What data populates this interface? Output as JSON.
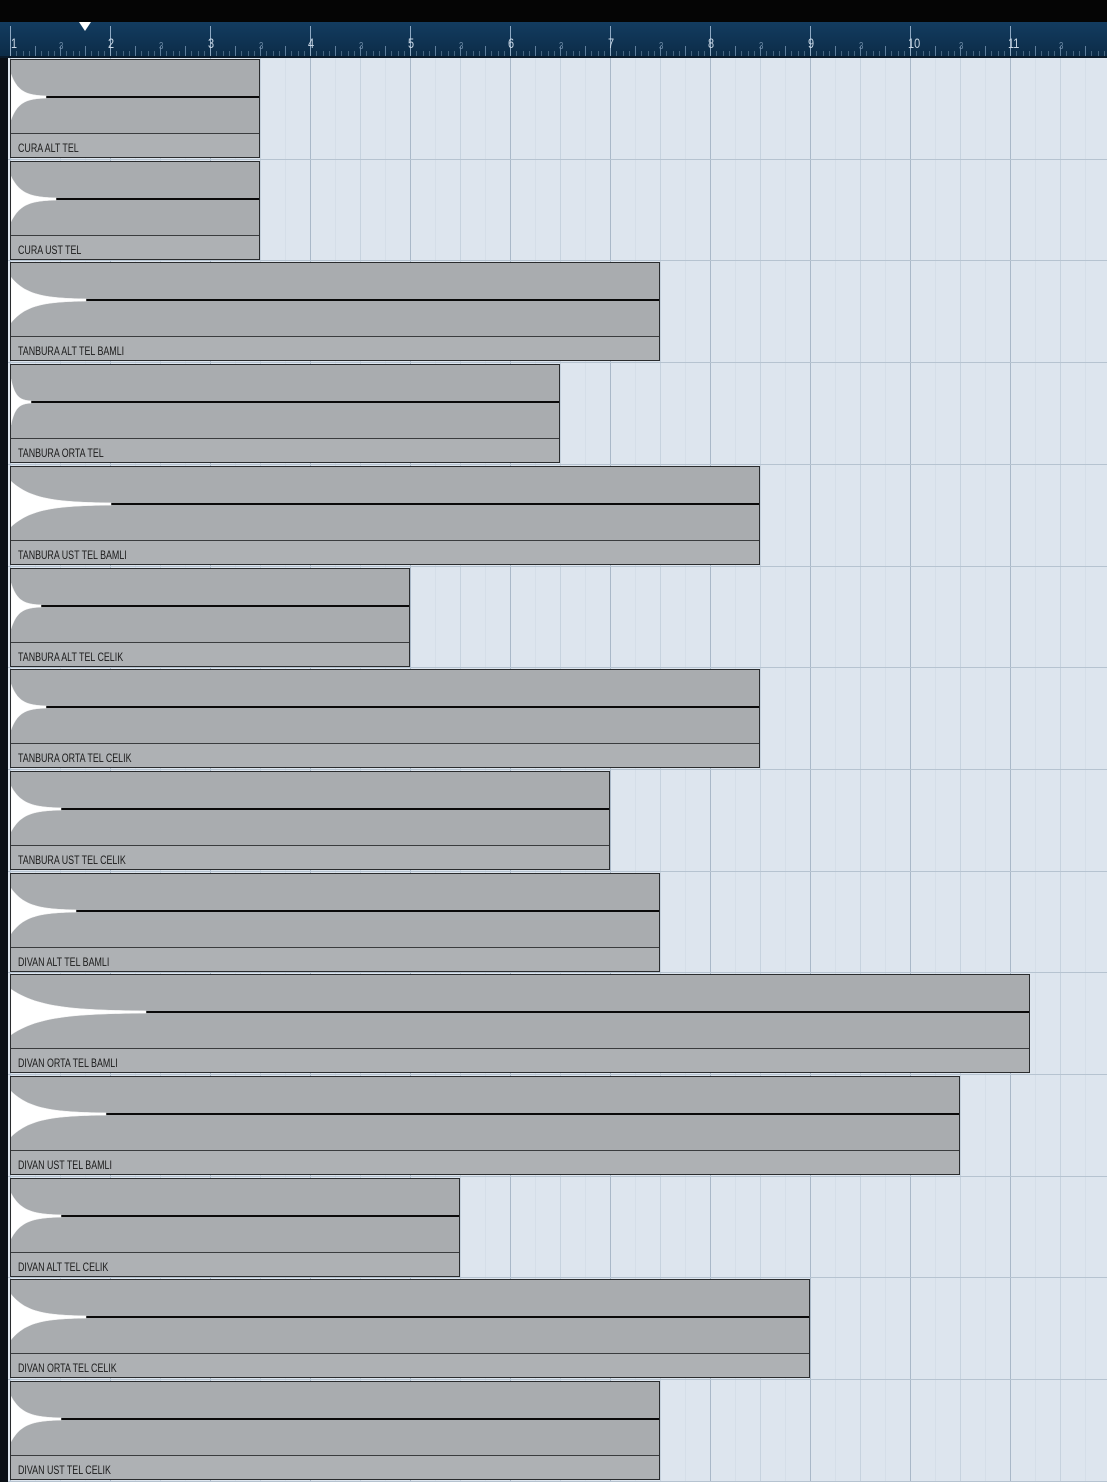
{
  "ruler": {
    "bar_labels": [
      "1",
      "2",
      "3",
      "4",
      "5",
      "6",
      "7",
      "8",
      "9",
      "10",
      "11"
    ],
    "beat_label": "3",
    "cursor_position_bar": 1.75
  },
  "events": [
    {
      "name": "CURA ALT TEL",
      "end_bar": 3.5,
      "attack_length_bars": 0.35
    },
    {
      "name": "CURA UST TEL",
      "end_bar": 3.5,
      "attack_length_bars": 0.45
    },
    {
      "name": "TANBURA ALT TEL BAMLI",
      "end_bar": 7.5,
      "attack_length_bars": 0.75
    },
    {
      "name": "TANBURA ORTA TEL",
      "end_bar": 6.5,
      "attack_length_bars": 0.2
    },
    {
      "name": "TANBURA UST TEL BAMLI",
      "end_bar": 8.5,
      "attack_length_bars": 1.0
    },
    {
      "name": "TANBURA ALT TEL CELIK",
      "end_bar": 5.0,
      "attack_length_bars": 0.3
    },
    {
      "name": "TANBURA ORTA TEL CELIK",
      "end_bar": 8.5,
      "attack_length_bars": 0.35
    },
    {
      "name": "TANBURA UST TEL CELIK",
      "end_bar": 7.0,
      "attack_length_bars": 0.5
    },
    {
      "name": "DIVAN ALT TEL BAMLI",
      "end_bar": 7.5,
      "attack_length_bars": 0.65
    },
    {
      "name": "DIVAN ORTA TEL BAMLI",
      "end_bar": 11.2,
      "attack_length_bars": 1.35
    },
    {
      "name": "DIVAN UST TEL BAMLI",
      "end_bar": 10.5,
      "attack_length_bars": 0.95
    },
    {
      "name": "DIVAN ALT TEL CELIK",
      "end_bar": 5.5,
      "attack_length_bars": 0.5
    },
    {
      "name": "DIVAN ORTA TEL CELIK",
      "end_bar": 9.0,
      "attack_length_bars": 0.75
    },
    {
      "name": "DIVAN UST TEL CELIK",
      "end_bar": 7.5,
      "attack_length_bars": 0.5
    }
  ],
  "colors": {
    "event_fill": "#a9acaf",
    "grid_background": "#dde5ee",
    "ruler_background": "#133c60",
    "waveform": "#ffffff",
    "waveform_line": "#0a0a0a"
  }
}
